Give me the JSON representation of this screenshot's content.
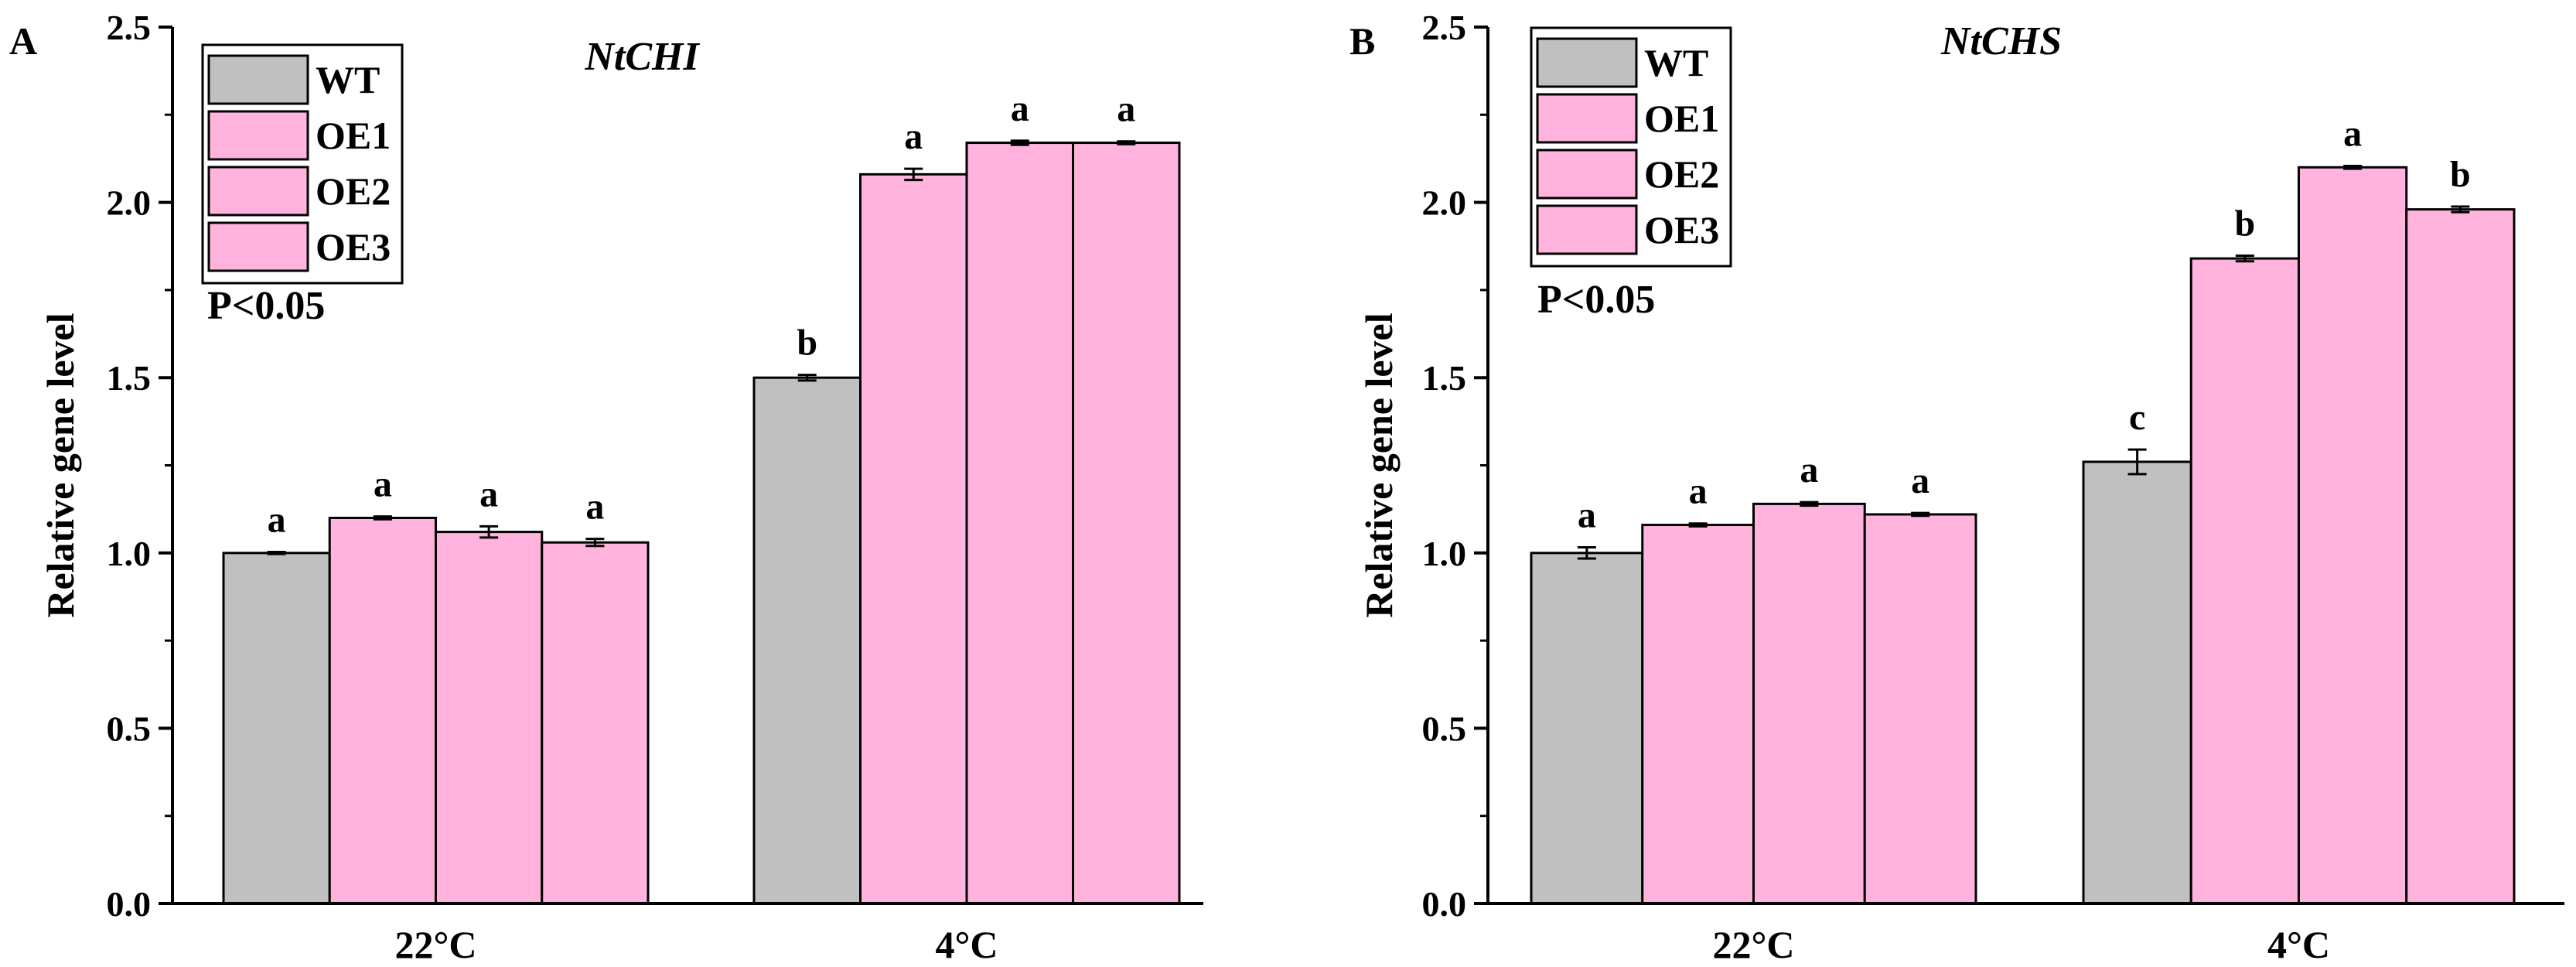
{
  "chart_data": [
    {
      "type": "bar",
      "panel": "A",
      "title": "NtCHI",
      "xlabel": "",
      "ylabel": "Relative gene level",
      "ylim": [
        0,
        2.5
      ],
      "yticks": [
        "0.0",
        "0.5",
        "1.0",
        "1.5",
        "2.0",
        "2.5"
      ],
      "categories": [
        "22°C",
        "4°C"
      ],
      "series": [
        {
          "name": "WT",
          "color": "#c0c0c0",
          "values": [
            1.0,
            1.5
          ],
          "errors": [
            0.003,
            0.008
          ],
          "letters": [
            "a",
            "b"
          ]
        },
        {
          "name": "OE1",
          "color": "#ffb3dd",
          "values": [
            1.1,
            2.08
          ],
          "errors": [
            0.004,
            0.016
          ],
          "letters": [
            "a",
            "a"
          ]
        },
        {
          "name": "OE2",
          "color": "#ffb3dd",
          "values": [
            1.06,
            2.17
          ],
          "errors": [
            0.016,
            0.006
          ],
          "letters": [
            "a",
            "a"
          ]
        },
        {
          "name": "OE3",
          "color": "#ffb3dd",
          "values": [
            1.03,
            2.17
          ],
          "errors": [
            0.01,
            0.004
          ],
          "letters": [
            "a",
            "a"
          ]
        }
      ],
      "annotation": "P<0.05",
      "legend_position": "top-left"
    },
    {
      "type": "bar",
      "panel": "B",
      "title": "NtCHS",
      "xlabel": "",
      "ylabel": "Relative gene level",
      "ylim": [
        0,
        2.5
      ],
      "yticks": [
        "0.0",
        "0.5",
        "1.0",
        "1.5",
        "2.0",
        "2.5"
      ],
      "categories": [
        "22°C",
        "4°C"
      ],
      "series": [
        {
          "name": "WT",
          "color": "#c0c0c0",
          "values": [
            1.0,
            1.26
          ],
          "errors": [
            0.016,
            0.035
          ],
          "letters": [
            "a",
            "c"
          ]
        },
        {
          "name": "OE1",
          "color": "#ffb3dd",
          "values": [
            1.08,
            1.84
          ],
          "errors": [
            0.004,
            0.008
          ],
          "letters": [
            "a",
            "b"
          ]
        },
        {
          "name": "OE2",
          "color": "#ffb3dd",
          "values": [
            1.14,
            2.1
          ],
          "errors": [
            0.005,
            0.004
          ],
          "letters": [
            "a",
            "a"
          ]
        },
        {
          "name": "OE3",
          "color": "#ffb3dd",
          "values": [
            1.11,
            1.98
          ],
          "errors": [
            0.004,
            0.008
          ],
          "letters": [
            "a",
            "b"
          ]
        }
      ],
      "annotation": "P<0.05",
      "legend_position": "top-left"
    }
  ]
}
